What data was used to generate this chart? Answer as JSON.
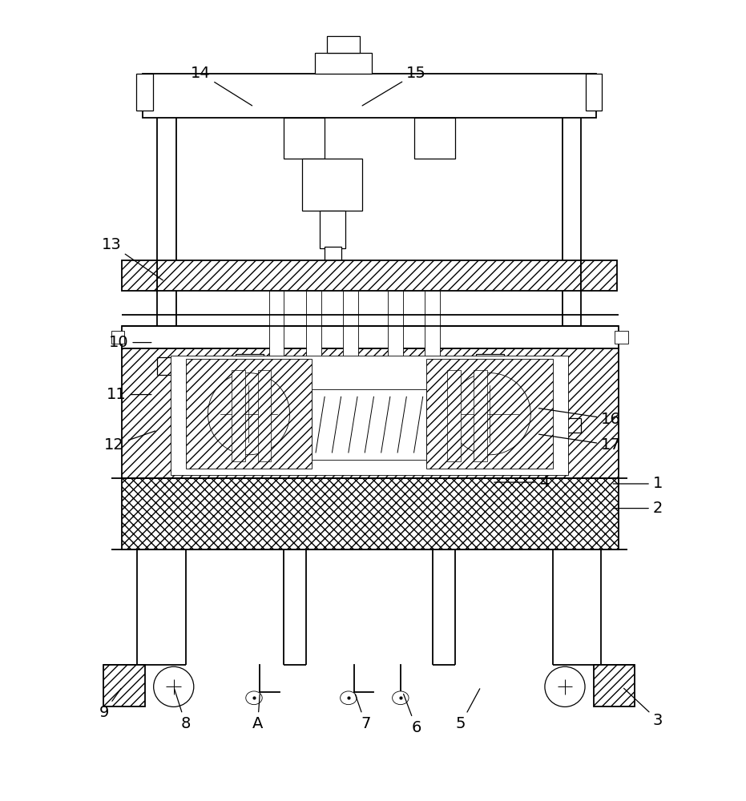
{
  "bg_color": "#ffffff",
  "line_color": "#000000",
  "figsize": [
    9.31,
    10.0
  ],
  "dpi": 100,
  "labels": {
    "1": [
      0.883,
      0.388,
      0.82,
      0.388
    ],
    "2": [
      0.883,
      0.355,
      0.82,
      0.355
    ],
    "3": [
      0.883,
      0.07,
      0.835,
      0.115
    ],
    "4": [
      0.73,
      0.39,
      0.66,
      0.39
    ],
    "5": [
      0.618,
      0.065,
      0.645,
      0.115
    ],
    "6": [
      0.558,
      0.06,
      0.54,
      0.108
    ],
    "7": [
      0.49,
      0.065,
      0.475,
      0.108
    ],
    "8": [
      0.248,
      0.065,
      0.232,
      0.115
    ],
    "9": [
      0.138,
      0.08,
      0.163,
      0.115
    ],
    "10": [
      0.158,
      0.578,
      0.205,
      0.578
    ],
    "11": [
      0.155,
      0.508,
      0.205,
      0.508
    ],
    "12": [
      0.152,
      0.44,
      0.21,
      0.46
    ],
    "13": [
      0.148,
      0.71,
      0.22,
      0.66
    ],
    "14": [
      0.268,
      0.94,
      0.34,
      0.895
    ],
    "15": [
      0.558,
      0.94,
      0.483,
      0.895
    ],
    "16": [
      0.82,
      0.475,
      0.72,
      0.49
    ],
    "17": [
      0.82,
      0.44,
      0.72,
      0.455
    ],
    "A": [
      0.345,
      0.065,
      0.348,
      0.108
    ]
  }
}
